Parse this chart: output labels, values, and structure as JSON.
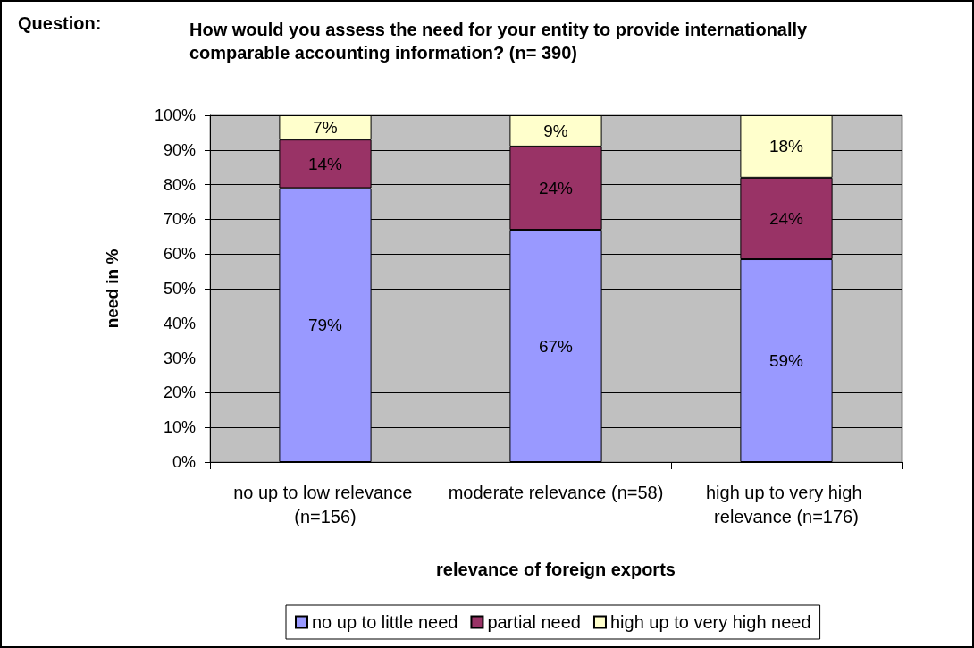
{
  "chart_data": {
    "type": "bar",
    "title": "How would you assess the need for your entity to provide internationally comparable accounting information? (n= 390)",
    "annotations": [
      "Question:"
    ],
    "xlabel": "relevance of foreign exports",
    "ylabel": "need in %",
    "categories": [
      "no up to low relevance (n=156)",
      "moderate relevance (n=58)",
      "high up to very high relevance (n=176)"
    ],
    "series": [
      {
        "name": "no up to little need",
        "color": "#9999ff",
        "values": [
          79,
          67,
          58.5
        ],
        "value_labels": [
          "79%",
          "67%",
          "59%"
        ]
      },
      {
        "name": "partial need",
        "color": "#993366",
        "values": [
          14,
          24,
          23.5
        ],
        "value_labels": [
          "14%",
          "24%",
          "24%"
        ]
      },
      {
        "name": "high up to very high need",
        "color": "#ffffcc",
        "values": [
          7,
          9,
          18
        ],
        "value_labels": [
          "7%",
          "9%",
          "18%"
        ]
      }
    ],
    "stacked": true,
    "ylim": [
      0,
      100
    ],
    "yticks": [
      {
        "value": 0,
        "label": "0%"
      },
      {
        "value": 10,
        "label": "10%"
      },
      {
        "value": 20,
        "label": "20%"
      },
      {
        "value": 30,
        "label": "30%"
      },
      {
        "value": 40,
        "label": "40%"
      },
      {
        "value": 50,
        "label": "50%"
      },
      {
        "value": 60,
        "label": "60%"
      },
      {
        "value": 70,
        "label": "70%"
      },
      {
        "value": 80,
        "label": "80%"
      },
      {
        "value": 90,
        "label": "90%"
      },
      {
        "value": 100,
        "label": "100%"
      }
    ],
    "grid": "y",
    "legend": "bottom"
  }
}
